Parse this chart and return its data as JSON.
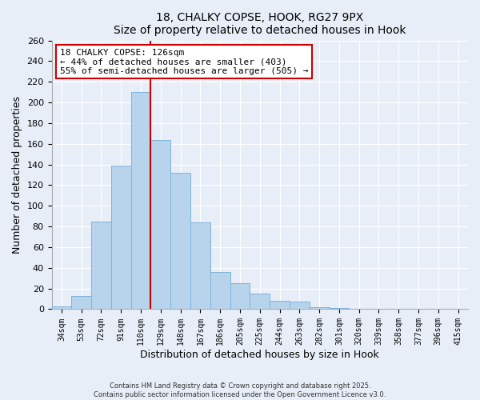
{
  "title1": "18, CHALKY COPSE, HOOK, RG27 9PX",
  "title2": "Size of property relative to detached houses in Hook",
  "xlabel": "Distribution of detached houses by size in Hook",
  "ylabel": "Number of detached properties",
  "bar_labels": [
    "34sqm",
    "53sqm",
    "72sqm",
    "91sqm",
    "110sqm",
    "129sqm",
    "148sqm",
    "167sqm",
    "186sqm",
    "205sqm",
    "225sqm",
    "244sqm",
    "263sqm",
    "282sqm",
    "301sqm",
    "320sqm",
    "339sqm",
    "358sqm",
    "377sqm",
    "396sqm",
    "415sqm"
  ],
  "bar_values": [
    3,
    13,
    85,
    139,
    210,
    164,
    132,
    84,
    36,
    25,
    15,
    8,
    7,
    2,
    1,
    0,
    0,
    0,
    0,
    0,
    0
  ],
  "bar_color": "#b8d4ed",
  "bar_edgecolor": "#7fb3d9",
  "vline_x": 5,
  "vline_color": "#cc0000",
  "annotation_title": "18 CHALKY COPSE: 126sqm",
  "annotation_line1": "← 44% of detached houses are smaller (403)",
  "annotation_line2": "55% of semi-detached houses are larger (505) →",
  "annotation_box_facecolor": "#ffffff",
  "annotation_box_edgecolor": "#cc0000",
  "ylim": [
    0,
    260
  ],
  "yticks": [
    0,
    20,
    40,
    60,
    80,
    100,
    120,
    140,
    160,
    180,
    200,
    220,
    240,
    260
  ],
  "footnote1": "Contains HM Land Registry data © Crown copyright and database right 2025.",
  "footnote2": "Contains public sector information licensed under the Open Government Licence v3.0.",
  "bg_color": "#e8eef8"
}
